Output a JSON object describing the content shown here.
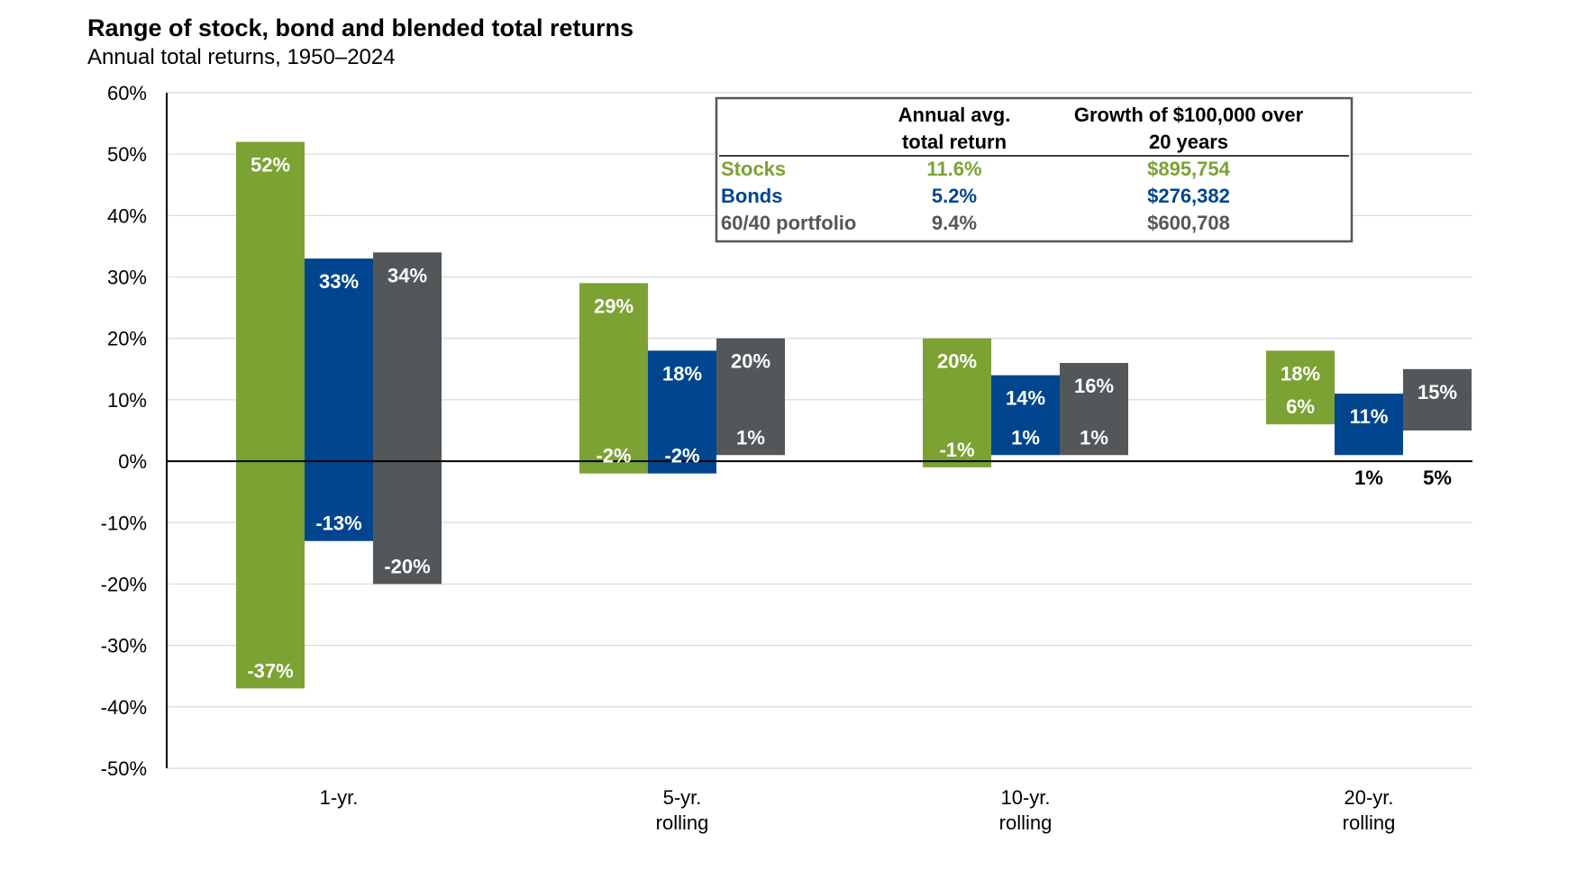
{
  "chart_data": {
    "type": "bar",
    "subtype": "floating-range",
    "title": "Range of stock, bond and blended total returns",
    "subtitle": "Annual total returns, 1950–2024",
    "ylim": [
      -50,
      60
    ],
    "yticks": [
      60,
      50,
      40,
      30,
      20,
      10,
      0,
      -10,
      -20,
      -30,
      -40,
      -50
    ],
    "ytick_labels": [
      "60%",
      "50%",
      "40%",
      "30%",
      "20%",
      "10%",
      "0%",
      "-10%",
      "-20%",
      "-30%",
      "-40%",
      "-50%"
    ],
    "grid": true,
    "categories": [
      {
        "line1": "1-yr.",
        "line2": ""
      },
      {
        "line1": "5-yr.",
        "line2": "rolling"
      },
      {
        "line1": "10-yr.",
        "line2": "rolling"
      },
      {
        "line1": "20-yr.",
        "line2": "rolling"
      }
    ],
    "series": [
      {
        "name": "Stocks",
        "color": "#7ba232",
        "high": [
          52,
          29,
          20,
          18
        ],
        "low": [
          -37,
          -2,
          -1,
          6
        ],
        "high_labels": [
          "52%",
          "29%",
          "20%",
          "18%"
        ],
        "low_labels": [
          "-37%",
          "-2%",
          "-1%",
          "6%"
        ]
      },
      {
        "name": "Bonds",
        "color": "#00458e",
        "high": [
          33,
          18,
          14,
          11
        ],
        "low": [
          -13,
          -2,
          1,
          1
        ],
        "high_labels": [
          "33%",
          "18%",
          "14%",
          "11%"
        ],
        "low_labels": [
          "-13%",
          "-2%",
          "1%",
          "1%"
        ]
      },
      {
        "name": "60/40 portfolio",
        "color": "#53575a",
        "high": [
          34,
          20,
          16,
          15
        ],
        "low": [
          -20,
          1,
          1,
          5
        ],
        "high_labels": [
          "34%",
          "20%",
          "16%",
          "15%"
        ],
        "low_labels": [
          "-20%",
          "1%",
          "1%",
          "5%"
        ]
      }
    ],
    "table": {
      "headers": {
        "avg_line1": "Annual avg.",
        "avg_line2": "total return",
        "growth_line1": "Growth of $100,000 over",
        "growth_line2": "20 years"
      },
      "rows": [
        {
          "label": "Stocks",
          "avg": "11.6%",
          "growth": "$895,754",
          "color": "#7ba232"
        },
        {
          "label": "Bonds",
          "avg": "5.2%",
          "growth": "$276,382",
          "color": "#00458e"
        },
        {
          "label": "60/40 portfolio",
          "avg": "9.4%",
          "growth": "$600,708",
          "color": "#53575a"
        }
      ]
    }
  }
}
